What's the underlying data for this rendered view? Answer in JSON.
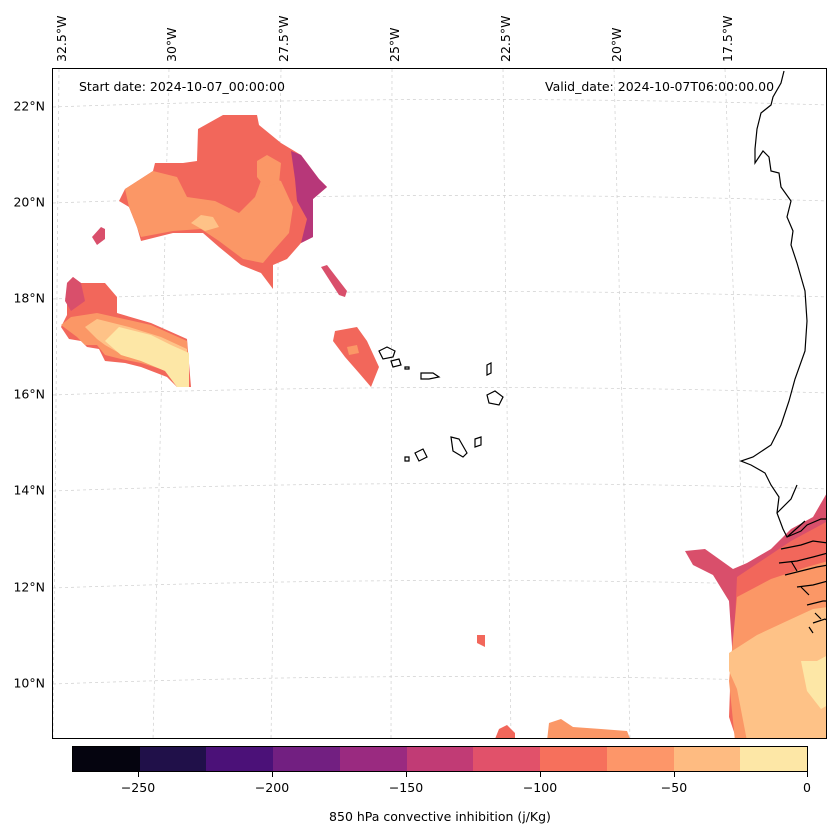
{
  "header": {
    "start_date": "Start date: 2024-10-07_00:00:00",
    "valid_date": "Valid_date: 2024-10-07T06:00:00.00"
  },
  "map": {
    "lon_labels": [
      "32.5°W",
      "30°W",
      "27.5°W",
      "25°W",
      "22.5°W",
      "20°W",
      "17.5°W"
    ],
    "lat_labels": [
      "22°N",
      "20°N",
      "18°N",
      "16°N",
      "14°N",
      "12°N",
      "10°N"
    ],
    "fill_colors": [
      "#f2675b",
      "#fb9766",
      "#fec287",
      "#fde7a6",
      "#d94f6b",
      "#b73779"
    ],
    "coast_color": "#000000"
  },
  "colorbar": {
    "label": "850 hPa convective inhibition (j/Kg)",
    "colors": [
      "#05040f",
      "#201049",
      "#4b1178",
      "#721f81",
      "#9a2a80",
      "#c13b75",
      "#e1516a",
      "#f6705c",
      "#fd9669",
      "#febb81",
      "#fde7a6"
    ],
    "ticks": [
      "−250",
      "−200",
      "−150",
      "−100",
      "−50",
      "0"
    ]
  }
}
